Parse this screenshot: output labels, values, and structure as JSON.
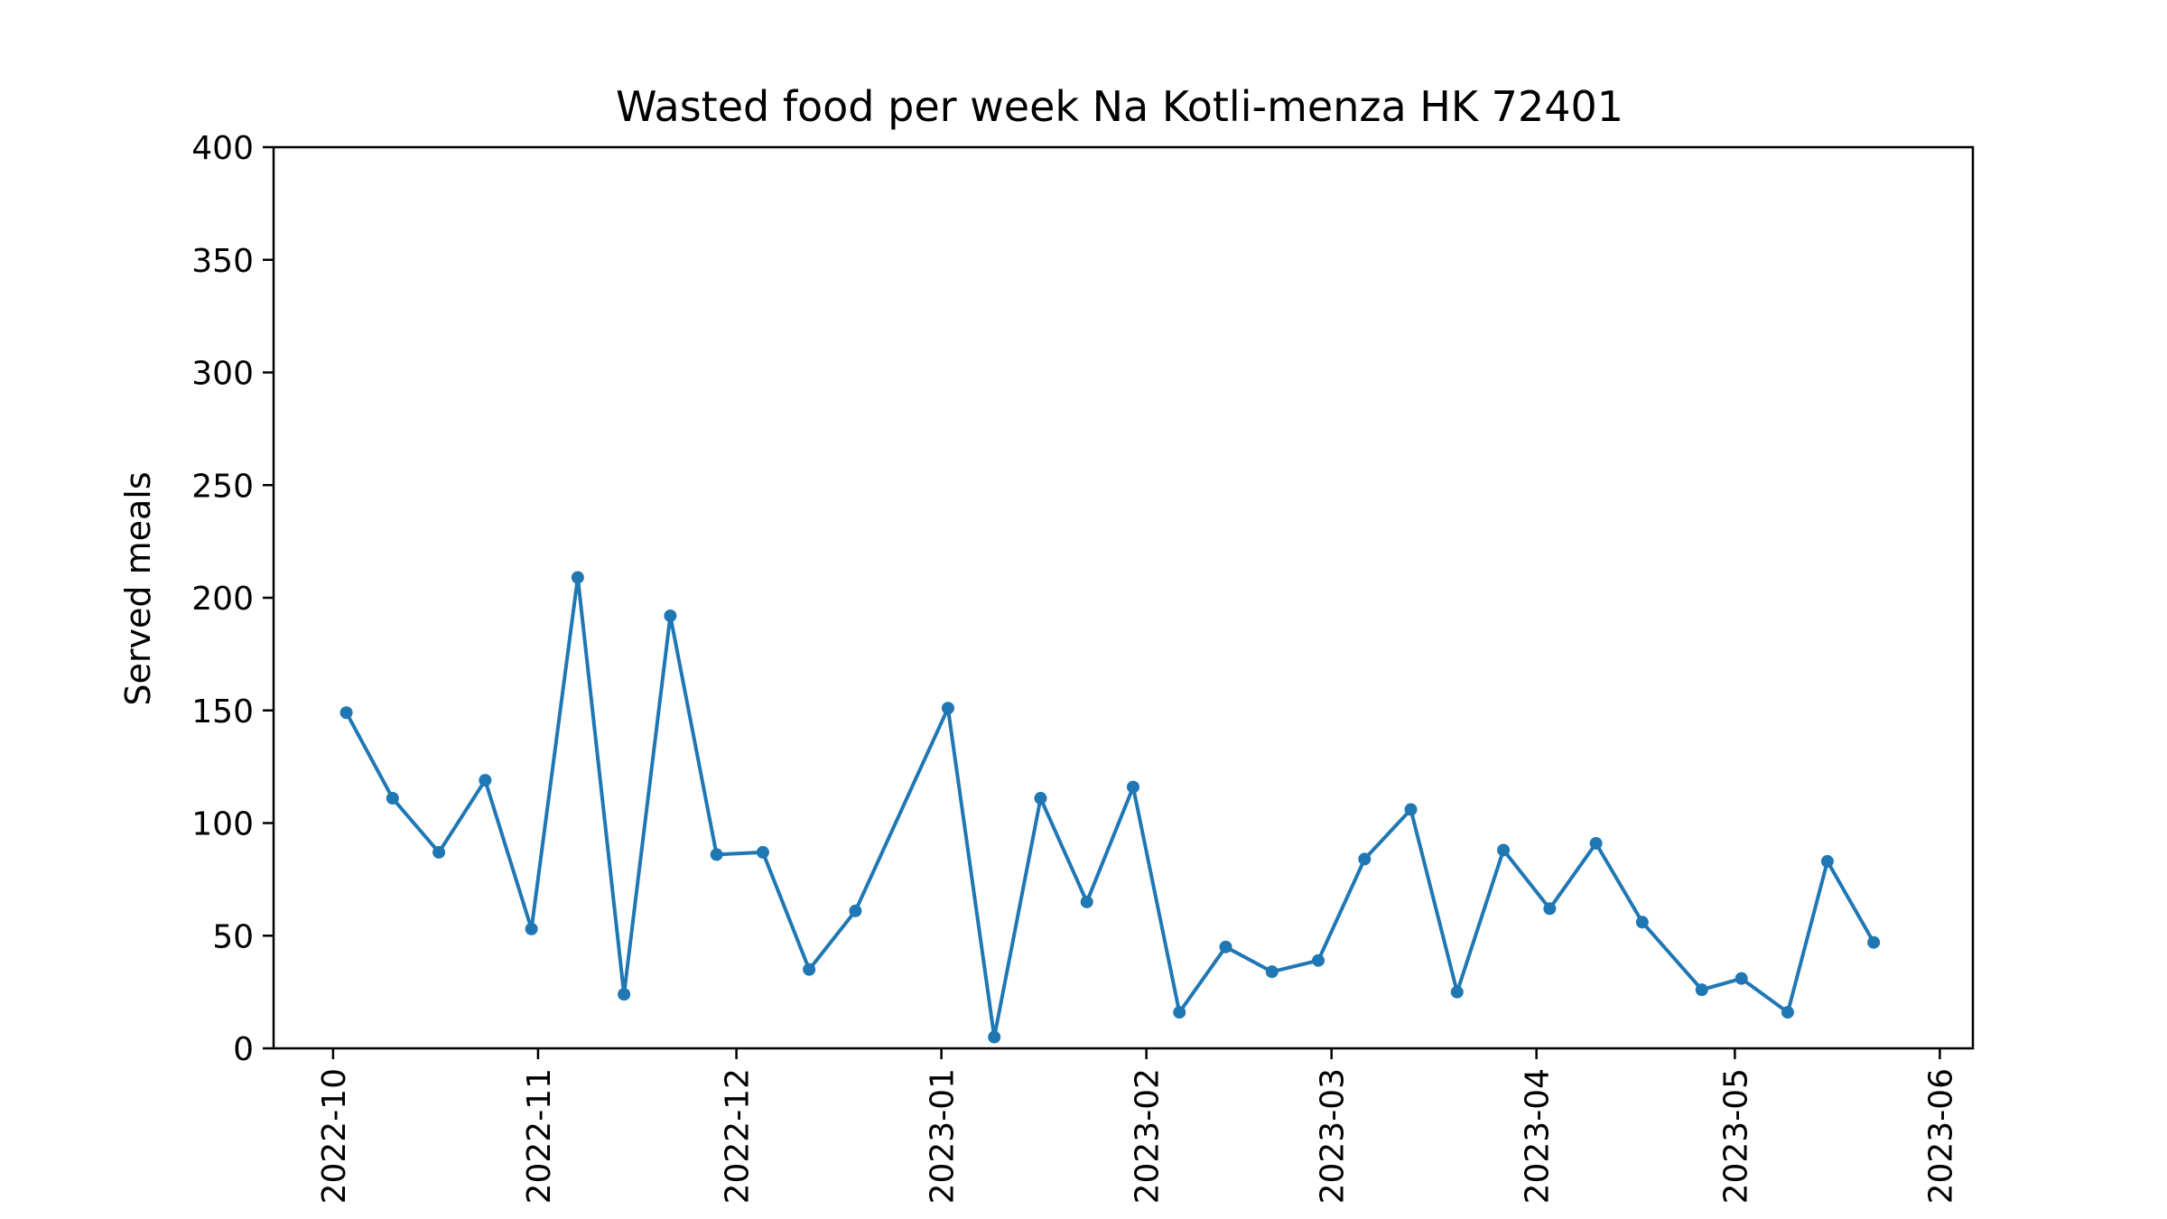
{
  "chart_data": {
    "type": "line",
    "title": "Wasted food per week Na Kotli-menza HK 72401",
    "xlabel": "",
    "ylabel": "Served meals",
    "ylim": [
      0,
      400
    ],
    "xlim": [
      "2022-09-22",
      "2023-06-06"
    ],
    "grid": false,
    "line_color": "#1f77b4",
    "y_ticks": [
      0,
      50,
      100,
      150,
      200,
      250,
      300,
      350,
      400
    ],
    "x_ticks": [
      "2022-10",
      "2022-11",
      "2022-12",
      "2023-01",
      "2023-02",
      "2023-03",
      "2023-04",
      "2023-05",
      "2023-06"
    ],
    "x": [
      "2022-10-03",
      "2022-10-10",
      "2022-10-17",
      "2022-10-24",
      "2022-10-31",
      "2022-11-07",
      "2022-11-14",
      "2022-11-21",
      "2022-11-28",
      "2022-12-05",
      "2022-12-12",
      "2022-12-19",
      "2023-01-02",
      "2023-01-09",
      "2023-01-16",
      "2023-01-23",
      "2023-01-30",
      "2023-02-06",
      "2023-02-13",
      "2023-02-20",
      "2023-02-27",
      "2023-03-06",
      "2023-03-13",
      "2023-03-20",
      "2023-03-27",
      "2023-04-03",
      "2023-04-10",
      "2023-04-17",
      "2023-04-26",
      "2023-05-02",
      "2023-05-09",
      "2023-05-15",
      "2023-05-22"
    ],
    "series": [
      {
        "values": [
          149,
          111,
          87,
          119,
          53,
          209,
          24,
          192,
          86,
          87,
          35,
          61,
          151,
          5,
          111,
          65,
          116,
          16,
          45,
          34,
          39,
          84,
          106,
          25,
          88,
          62,
          91,
          56,
          26,
          31,
          16,
          83,
          47
        ]
      }
    ]
  }
}
